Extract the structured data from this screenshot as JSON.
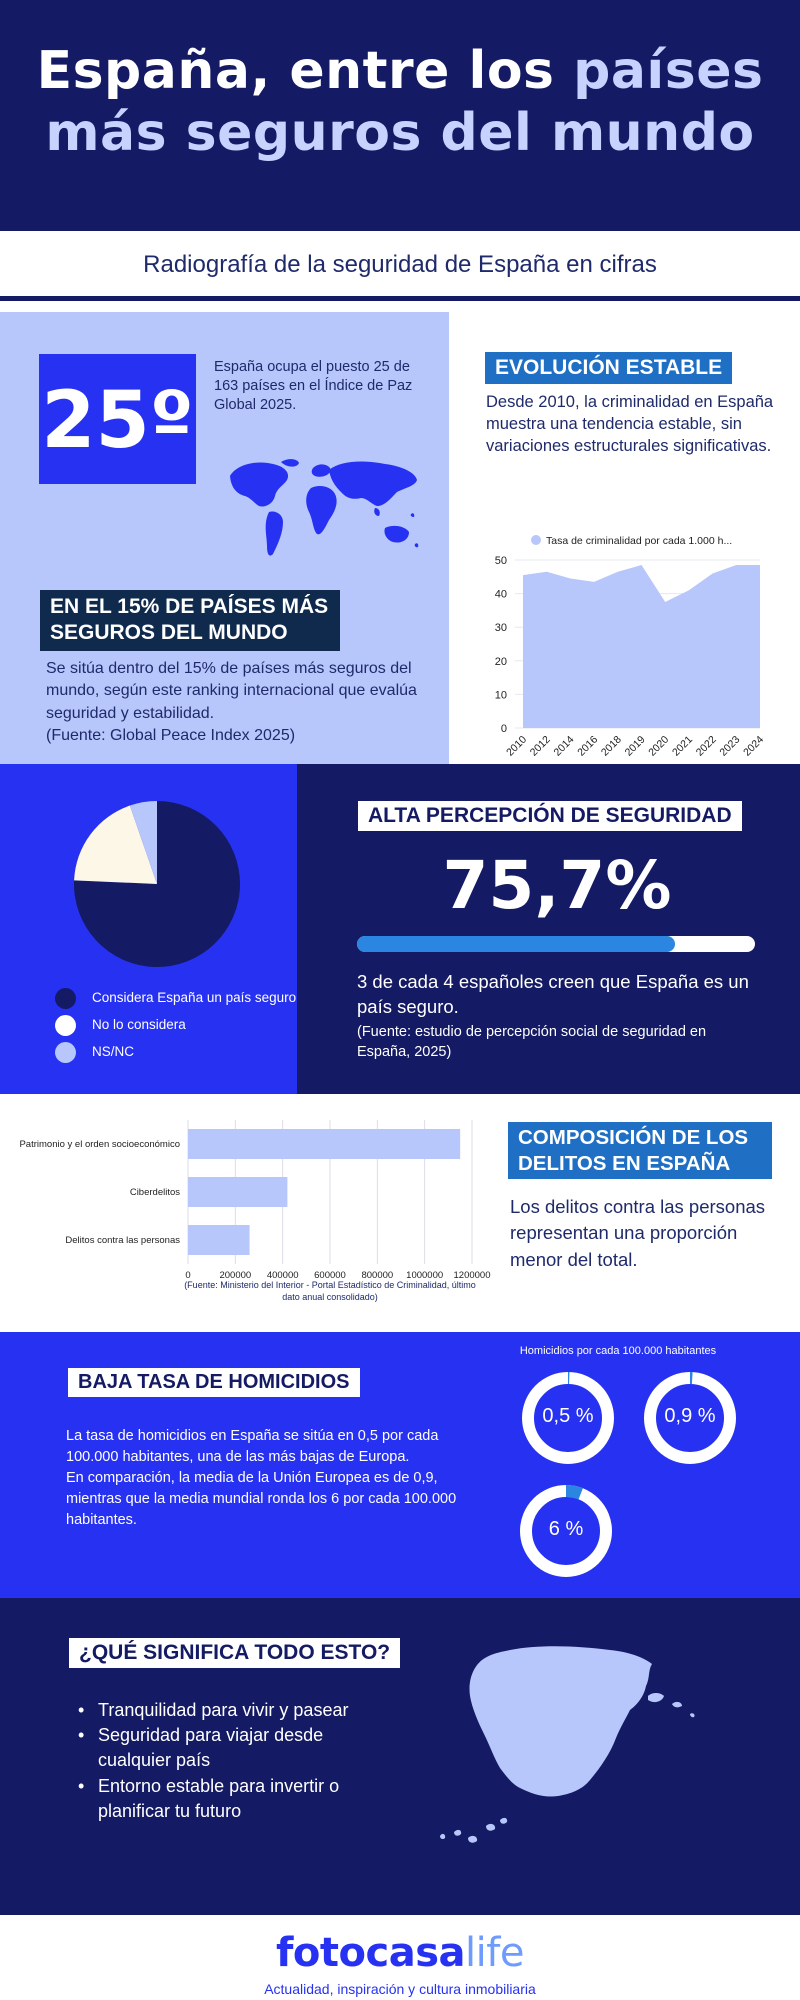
{
  "header": {
    "title_part1": "España, entre los",
    "title_highlight1": "países",
    "title_highlight2": "más seguros del mundo"
  },
  "subtitle": "Radiografía de la seguridad de España en cifras",
  "ranking": {
    "position": "25º",
    "description": "España ocupa el puesto 25 de 163 países en el Índice de Paz Global 2025.",
    "top_label": "EN EL 15%  DE PAÍSES MÁS SEGUROS DEL MUNDO",
    "top_text": "Se sitúa dentro del 15% de países más seguros del mundo, según este ranking internacional que evalúa seguridad y estabilidad.",
    "top_source": "(Fuente: Global Peace Index 2025)"
  },
  "evolution": {
    "label": "EVOLUCIÓN ESTABLE",
    "text": "Desde 2010, la criminalidad en España muestra una tendencia estable, sin variaciones estructurales significativas."
  },
  "perception": {
    "label": "ALTA PERCEPCIÓN DE SEGURIDAD",
    "value": "75,7%",
    "fraction": 0.8,
    "text": "3 de cada 4 españoles creen que España es un país seguro.",
    "source": "(Fuente: estudio de percepción social de seguridad en España, 2025)",
    "legend": [
      {
        "label": "Considera España un país seguro",
        "color": "#141a63"
      },
      {
        "label": "No lo considera",
        "color": "#ffffff"
      },
      {
        "label": "NS/NC",
        "color": "#b7c6fb"
      }
    ]
  },
  "delitos": {
    "label": "COMPOSICIÓN DE LOS DELITOS EN ESPAÑA",
    "text": "Los delitos contra las personas representan una proporción menor del total.",
    "source": "(Fuente: Ministerio del Interior - Portal Estadístico de Criminalidad, último dato anual consolidado)"
  },
  "homicidios": {
    "label": "BAJA TASA DE HOMICIDIOS",
    "text1": "La tasa de homicidios en España se sitúa en 0,5 por cada 100.000 habitantes, una de las más bajas de Europa.",
    "text2": "En comparación, la media de la Unión Europea es de 0,9, mientras que la media mundial ronda los 6 por cada 100.000 habitantes."
  },
  "significado": {
    "label": "¿QUÉ SIGNIFICA TODO ESTO?",
    "bullet": "•",
    "items": [
      "Tranquilidad para vivir y pasear",
      "Seguridad para viajar desde cualquier país",
      "Entorno estable para invertir o planificar tu futuro"
    ]
  },
  "footer": {
    "logo_main": "fotocasa",
    "logo_life": "life",
    "tagline": "Actualidad, inspiración y cultura inmobiliaria"
  },
  "chart_data": [
    {
      "type": "area",
      "legend": "Tasa de criminalidad por cada 1.000 h...",
      "x": [
        "2010",
        "2012",
        "2014",
        "2016",
        "2018",
        "2019",
        "2020",
        "2021",
        "2022",
        "2023",
        "2024"
      ],
      "values": [
        45.5,
        46.5,
        44.5,
        43.5,
        46.5,
        48.5,
        37.5,
        41,
        46,
        48.5,
        48.5
      ],
      "ylim": [
        0,
        50
      ],
      "yticks": [
        "0",
        "10",
        "20",
        "30",
        "40",
        "50"
      ],
      "color": "#b7c6fb"
    },
    {
      "type": "pie",
      "labels": [
        "Considera España un país seguro",
        "No lo considera",
        "NS/NC"
      ],
      "values": [
        75.7,
        19,
        5.3
      ],
      "colors": [
        "#141a63",
        "#fdf7e8",
        "#b7c6fb"
      ]
    },
    {
      "type": "bar",
      "orientation": "horizontal",
      "categories": [
        "Patrimonio y el orden socioeconómico",
        "Ciberdelitos",
        "Delitos contra las personas"
      ],
      "values": [
        1150000,
        420000,
        260000
      ],
      "xticks": [
        "0",
        "200000",
        "400000",
        "600000",
        "800000",
        "1000000",
        "1200000"
      ],
      "xlim": [
        0,
        1200000
      ],
      "color": "#b7c6fb"
    },
    {
      "type": "donut",
      "title": "Homicidios por cada 100.000 habitantes",
      "items": [
        {
          "label": "0,5 %",
          "value": 0.5,
          "max": 100
        },
        {
          "label": "0,9 %",
          "value": 0.9,
          "max": 100
        },
        {
          "label": "6 %",
          "value": 6,
          "max": 100
        }
      ]
    }
  ]
}
